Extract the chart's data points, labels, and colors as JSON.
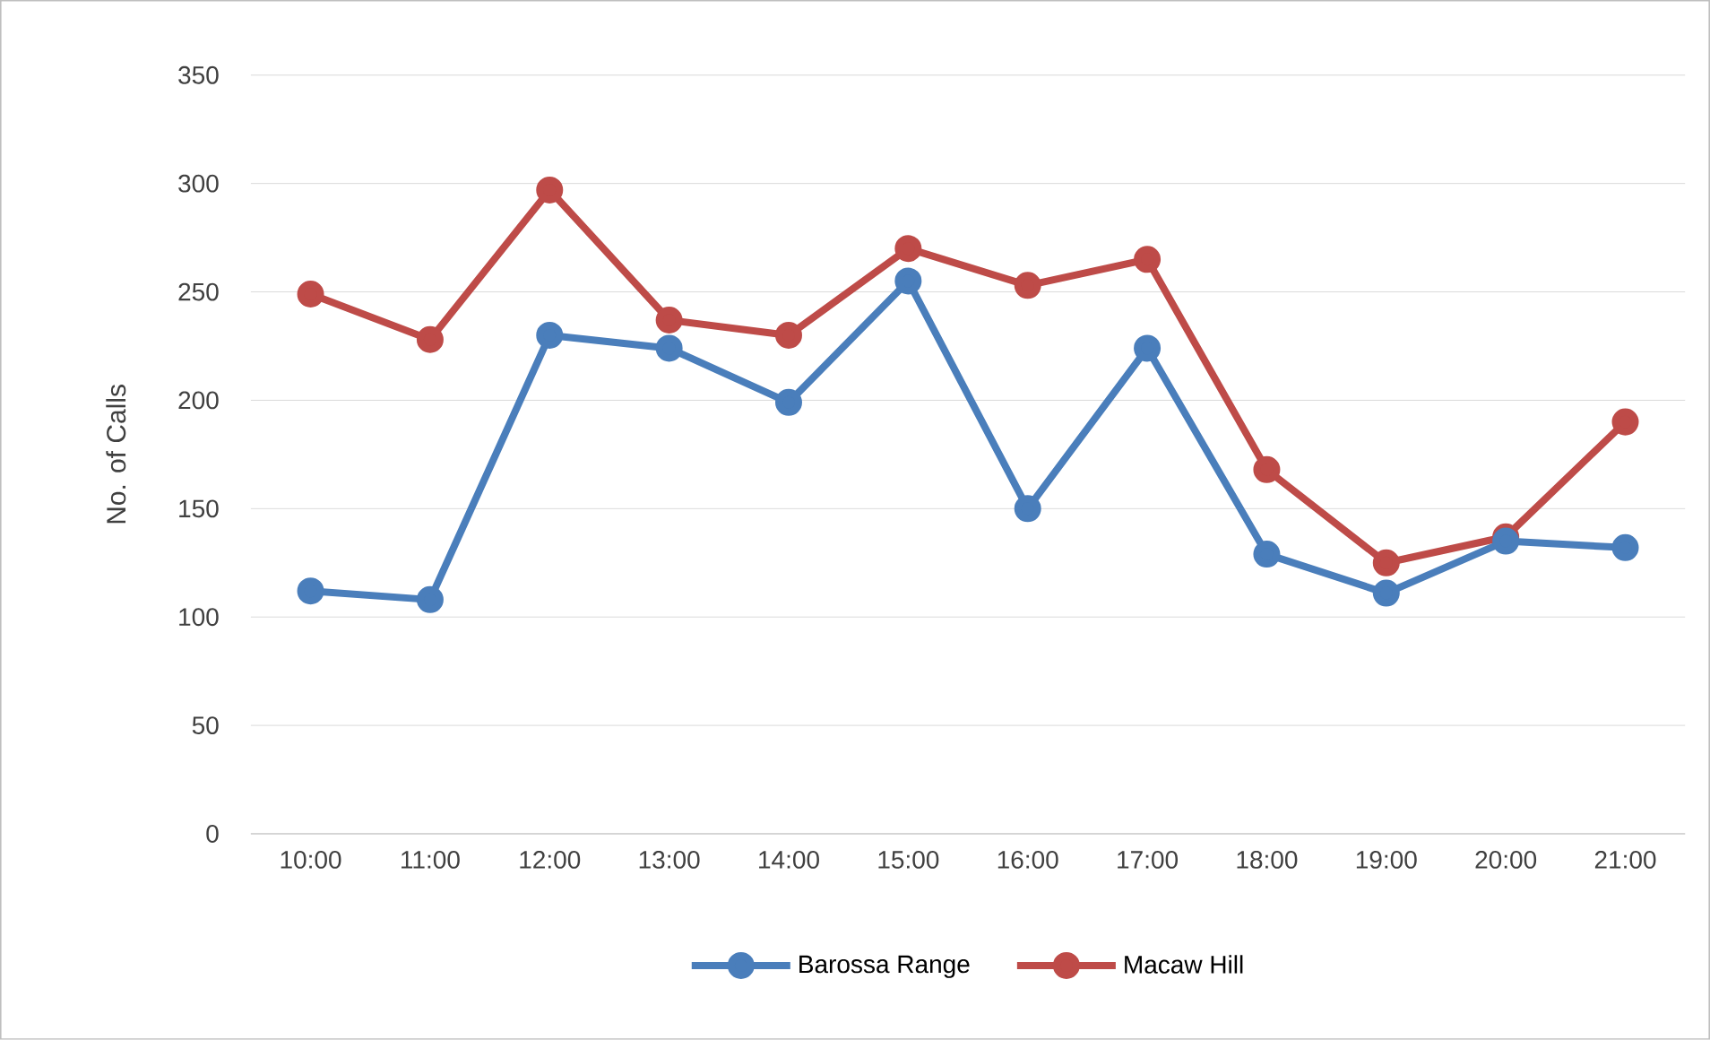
{
  "chart_data": {
    "type": "line",
    "ylabel": "No. of Calls",
    "categories": [
      "10:00",
      "11:00",
      "12:00",
      "13:00",
      "14:00",
      "15:00",
      "16:00",
      "17:00",
      "18:00",
      "19:00",
      "20:00",
      "21:00"
    ],
    "series": [
      {
        "name": "Barossa Range",
        "color": "#4a7ebb",
        "values": [
          112,
          108,
          230,
          224,
          199,
          255,
          150,
          224,
          129,
          111,
          135,
          132
        ]
      },
      {
        "name": "Macaw Hill",
        "color": "#be4b48",
        "values": [
          249,
          228,
          297,
          237,
          230,
          270,
          253,
          265,
          168,
          125,
          137,
          190
        ]
      }
    ],
    "ylim": [
      0,
      350
    ],
    "yticks": [
      0,
      50,
      100,
      150,
      200,
      250,
      300,
      350
    ],
    "grid": "y",
    "legend": "bottom",
    "marker": "circle",
    "line_style": "solid"
  }
}
